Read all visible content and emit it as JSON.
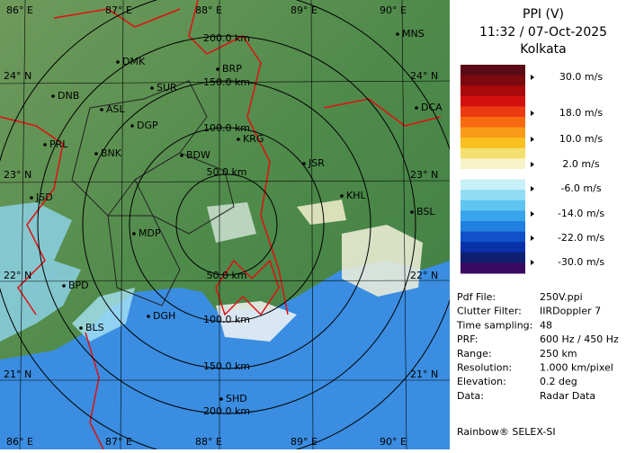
{
  "map": {
    "lon_labels": [
      "86° E",
      "87° E",
      "88° E",
      "89° E",
      "90° E"
    ],
    "lat_labels": [
      "24° N",
      "23° N",
      "22° N",
      "21° N"
    ],
    "stations": [
      "MNS",
      "DMK",
      "BRP",
      "SUR",
      "DNB",
      "ASL",
      "DCA",
      "DGP",
      "PRL",
      "KRG",
      "BNK",
      "BDW",
      "JSR",
      "JSD",
      "KHL",
      "BSL",
      "MDP",
      "BPD",
      "DGH",
      "BLS",
      "SHD"
    ],
    "range_labels": [
      "200.0 km",
      "150.0 km",
      "100.0 km",
      "50.0 km",
      "50.0 km",
      "100.0 km",
      "150.0 km",
      "200.0 km"
    ]
  },
  "panel": {
    "title": "PPI (V)",
    "time": "11:32 / 07-Oct-2025",
    "location": "Kolkata",
    "scale_labels": [
      "30.0 m/s",
      "18.0 m/s",
      "10.0 m/s",
      "2.0 m/s",
      "-6.0 m/s",
      "-14.0 m/s",
      "-22.0 m/s",
      "-30.0 m/s"
    ],
    "info": [
      [
        "Pdf File:",
        "250V.ppi"
      ],
      [
        "Clutter Filter:",
        "IIRDoppler 7"
      ],
      [
        "Time sampling:",
        "48"
      ],
      [
        "PRF:",
        "600 Hz / 450 Hz"
      ],
      [
        "Range:",
        "250 km"
      ],
      [
        "Resolution:",
        "1.000 km/pixel"
      ],
      [
        "Elevation:",
        "0.2 deg"
      ],
      [
        "Data:",
        "Radar Data"
      ]
    ],
    "footer": "Rainbow® SELEX-SI"
  }
}
